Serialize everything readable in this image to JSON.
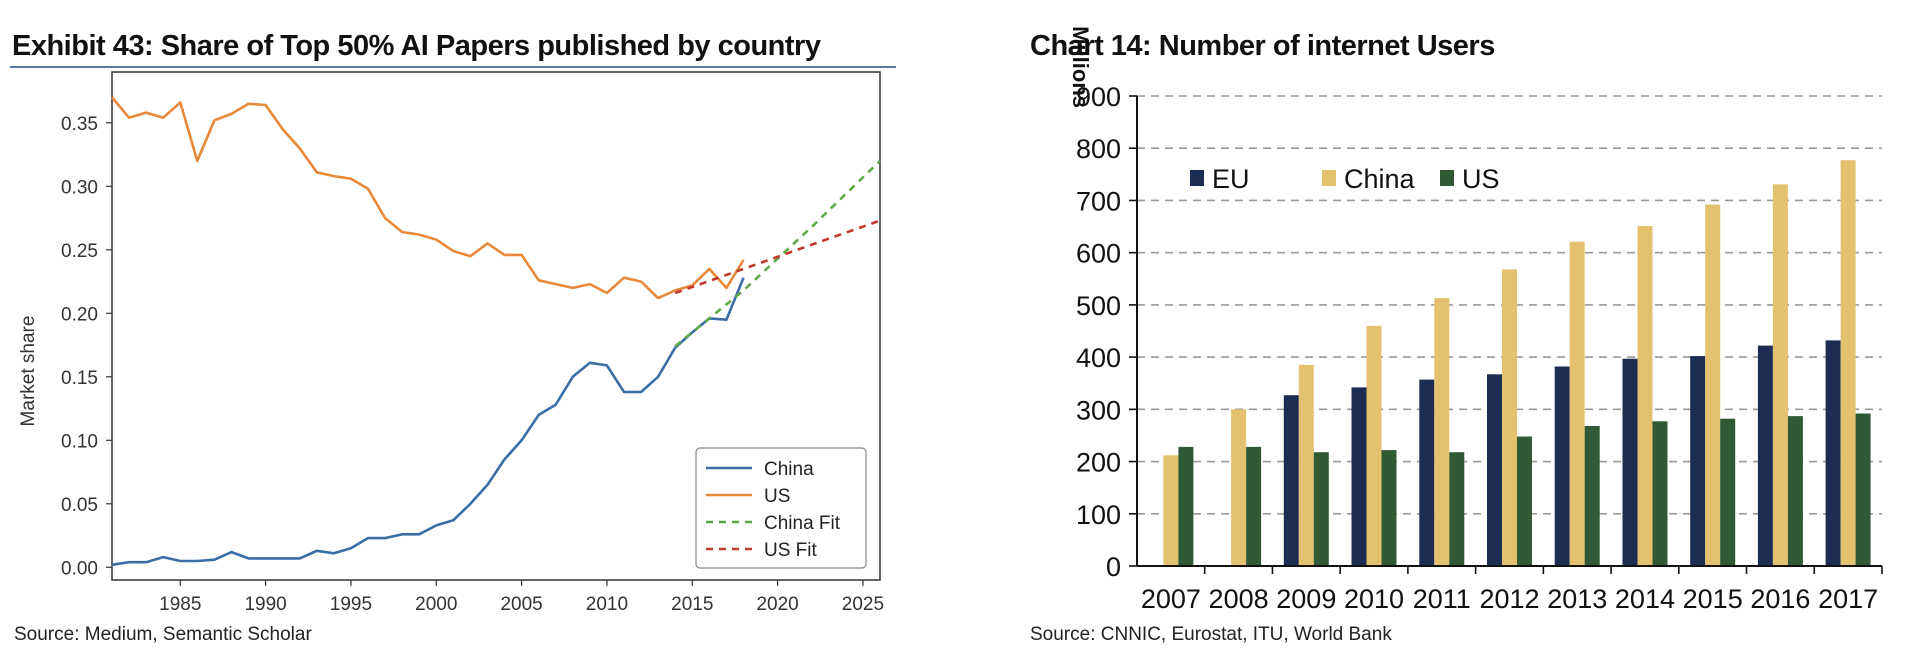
{
  "left": {
    "title": "Exhibit 43: Share of Top 50% AI Papers published by country",
    "source": "Source:  Medium, Semantic Scholar"
  },
  "right": {
    "title": "Chart 14: Number of internet Users",
    "source": "Source:  CNNIC,  Eurostat, ITU, World Bank"
  },
  "chart_data": [
    {
      "type": "line",
      "title": "Exhibit 43: Share of Top 50% AI Papers published by country",
      "xlabel": "",
      "ylabel": "Market share",
      "xlim": [
        1981,
        2026
      ],
      "ylim": [
        -0.01,
        0.39
      ],
      "x_ticks": [
        "1985",
        "1990",
        "1995",
        "2000",
        "2005",
        "2010",
        "2015",
        "2020",
        "2025"
      ],
      "y_ticks": [
        "0.00",
        "0.05",
        "0.10",
        "0.15",
        "0.20",
        "0.25",
        "0.30",
        "0.35"
      ],
      "grid": false,
      "legend": "bottom-right",
      "colors": {
        "China": "#3a6ea5",
        "US": "#e8893a",
        "China Fit": "#5fa84a",
        "US Fit": "#c0392b"
      },
      "series": [
        {
          "name": "China",
          "x": [
            1981,
            1982,
            1983,
            1984,
            1985,
            1986,
            1987,
            1988,
            1989,
            1990,
            1991,
            1992,
            1993,
            1994,
            1995,
            1996,
            1997,
            1998,
            1999,
            2000,
            2001,
            2002,
            2003,
            2004,
            2005,
            2006,
            2007,
            2008,
            2009,
            2010,
            2011,
            2012,
            2013,
            2014,
            2015,
            2016,
            2017,
            2018
          ],
          "values": [
            0.002,
            0.004,
            0.004,
            0.008,
            0.005,
            0.005,
            0.006,
            0.012,
            0.007,
            0.007,
            0.007,
            0.007,
            0.013,
            0.011,
            0.015,
            0.023,
            0.023,
            0.026,
            0.026,
            0.033,
            0.037,
            0.05,
            0.065,
            0.085,
            0.1,
            0.12,
            0.128,
            0.15,
            0.161,
            0.159,
            0.138,
            0.138,
            0.15,
            0.173,
            0.185,
            0.196,
            0.195,
            0.228
          ]
        },
        {
          "name": "US",
          "x": [
            1981,
            1982,
            1983,
            1984,
            1985,
            1986,
            1987,
            1988,
            1989,
            1990,
            1991,
            1992,
            1993,
            1994,
            1995,
            1996,
            1997,
            1998,
            1999,
            2000,
            2001,
            2002,
            2003,
            2004,
            2005,
            2006,
            2007,
            2008,
            2009,
            2010,
            2011,
            2012,
            2013,
            2014,
            2015,
            2016,
            2017,
            2018
          ],
          "values": [
            0.37,
            0.354,
            0.358,
            0.354,
            0.366,
            0.32,
            0.352,
            0.357,
            0.365,
            0.364,
            0.345,
            0.33,
            0.311,
            0.308,
            0.306,
            0.298,
            0.275,
            0.264,
            0.262,
            0.258,
            0.249,
            0.245,
            0.255,
            0.246,
            0.246,
            0.226,
            0.223,
            0.22,
            0.223,
            0.216,
            0.228,
            0.225,
            0.212,
            0.218,
            0.222,
            0.235,
            0.22,
            0.242
          ]
        },
        {
          "name": "China Fit",
          "dashed": true,
          "x": [
            2014,
            2018,
            2022,
            2026
          ],
          "values": [
            0.174,
            0.218,
            0.268,
            0.32
          ]
        },
        {
          "name": "US Fit",
          "dashed": true,
          "x": [
            2014,
            2018,
            2022,
            2026
          ],
          "values": [
            0.216,
            0.235,
            0.254,
            0.273
          ]
        }
      ]
    },
    {
      "type": "bar",
      "title": "Chart 14: Number of internet Users",
      "ylabel": "Millions",
      "categories": [
        "2007",
        "2008",
        "2009",
        "2010",
        "2011",
        "2012",
        "2013",
        "2014",
        "2015",
        "2016",
        "2017"
      ],
      "ylim": [
        0,
        900
      ],
      "y_ticks": [
        "0",
        "100",
        "200",
        "300",
        "400",
        "500",
        "600",
        "700",
        "800",
        "900"
      ],
      "grid": true,
      "legend": "top-left",
      "series": [
        {
          "name": "EU",
          "color": "#1c2c52",
          "values": [
            null,
            null,
            327,
            342,
            357,
            367,
            382,
            397,
            402,
            422,
            432
          ]
        },
        {
          "name": "China",
          "color": "#e3c16f",
          "values": [
            212,
            300,
            385,
            460,
            513,
            568,
            621,
            651,
            692,
            731,
            777
          ]
        },
        {
          "name": "US",
          "color": "#2f5a35",
          "values": [
            228,
            228,
            218,
            222,
            218,
            248,
            268,
            277,
            282,
            287,
            292
          ]
        }
      ]
    }
  ]
}
